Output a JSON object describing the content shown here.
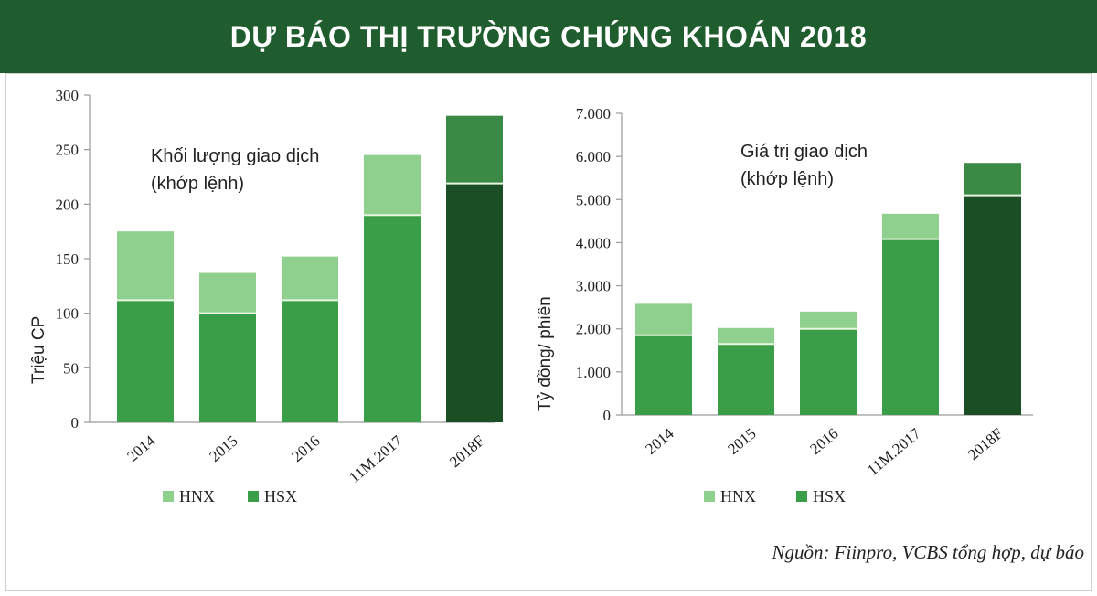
{
  "header": {
    "title": "DỰ BÁO THỊ TRƯỜNG CHỨNG KHOÁN 2018"
  },
  "source": "Nguồn: Fiinpro, VCBS tổng hợp, dự báo",
  "colors": {
    "banner": "#1f5c2e",
    "hnx": "#8fd08f",
    "hsx": "#3a9e48",
    "hsx_forecast": "#1b4e24",
    "hnx_forecast": "#3a8a45"
  },
  "chart_data": [
    {
      "type": "bar",
      "stacked": true,
      "title": "Khối lượng giao dịch\n(khớp lệnh)",
      "title_lines": [
        "Khối lượng giao dịch",
        "(khớp lệnh)"
      ],
      "ylabel": "Triệu CP",
      "xlabel": "",
      "ylim": [
        0,
        300
      ],
      "yticks": [
        0,
        50,
        100,
        150,
        200,
        250,
        300
      ],
      "ytick_labels": [
        "0",
        "50",
        "100",
        "150",
        "200",
        "250",
        "300"
      ],
      "categories": [
        "2014",
        "2015",
        "2016",
        "11M.2017",
        "2018F"
      ],
      "series": [
        {
          "name": "HSX",
          "values": [
            112,
            100,
            112,
            190,
            219
          ]
        },
        {
          "name": "HNX",
          "values": [
            63,
            37,
            40,
            55,
            62
          ]
        }
      ],
      "legend": [
        "HNX",
        "HSX"
      ],
      "legend_position": "bottom-left",
      "grid": false
    },
    {
      "type": "bar",
      "stacked": true,
      "title": "Giá trị giao dịch\n(khớp lệnh)",
      "title_lines": [
        "Giá trị giao dịch",
        "(khớp lệnh)"
      ],
      "ylabel": "Tỷ đồng/ phiên",
      "xlabel": "",
      "ylim": [
        0,
        7000
      ],
      "yticks": [
        0,
        1000,
        2000,
        3000,
        4000,
        5000,
        6000,
        7000
      ],
      "ytick_labels": [
        "0",
        "1.000",
        "2.000",
        "3.000",
        "4.000",
        "5.000",
        "6.000",
        "7.000"
      ],
      "categories": [
        "2014",
        "2015",
        "2016",
        "11M.2017",
        "2018F"
      ],
      "series": [
        {
          "name": "HSX",
          "values": [
            1850,
            1650,
            2000,
            4080,
            5100
          ]
        },
        {
          "name": "HNX",
          "values": [
            730,
            370,
            400,
            590,
            750
          ]
        }
      ],
      "legend": [
        "HNX",
        "HSX"
      ],
      "legend_position": "bottom-left",
      "grid": false
    }
  ]
}
